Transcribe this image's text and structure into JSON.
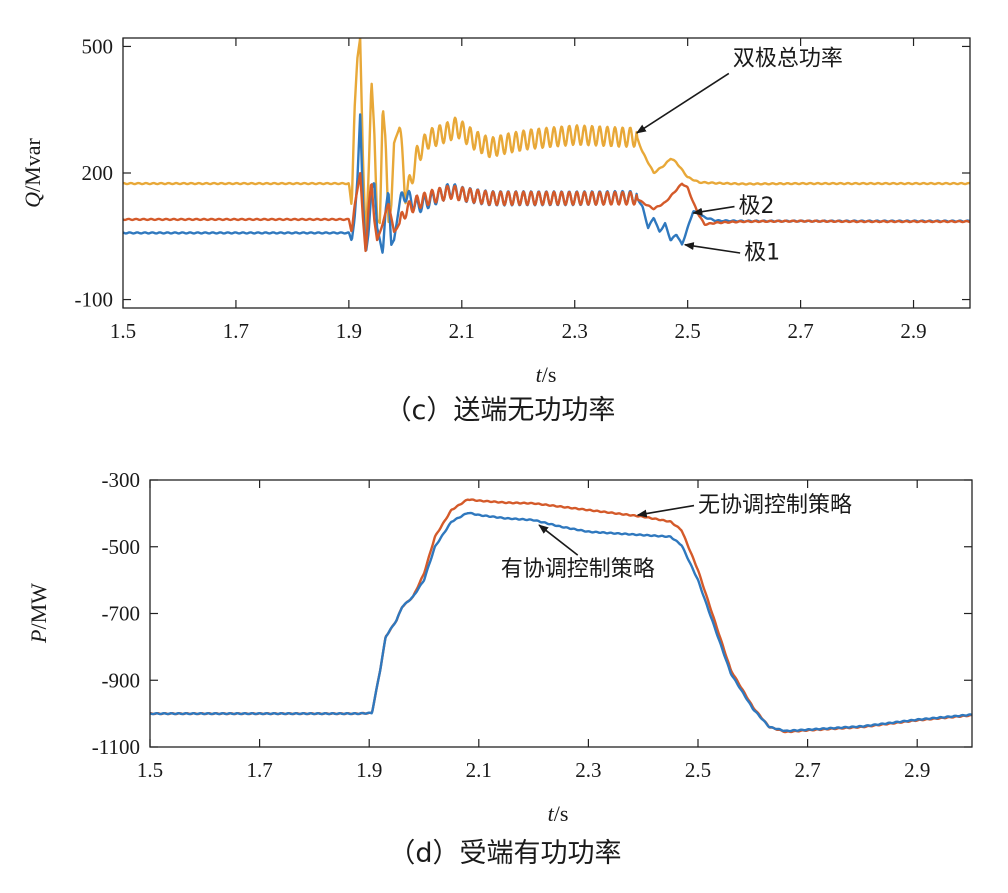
{
  "chart_data": [
    {
      "type": "line",
      "caption": "（c）送端无功功率",
      "ylabel_symbol": "Q",
      "ylabel_unit": "/Mvar",
      "xlabel_symbol": "t",
      "xlabel_unit": "/s",
      "xlim": [
        1.5,
        3.0
      ],
      "ylim": [
        -120,
        520
      ],
      "xticks": [
        1.5,
        1.7,
        1.9,
        2.1,
        2.3,
        2.5,
        2.7,
        2.9
      ],
      "xtick_labels": [
        "1.5",
        "1.7",
        "1.9",
        "2.1",
        "2.3",
        "2.5",
        "2.7",
        "2.9"
      ],
      "yticks": [
        500,
        200,
        -100
      ],
      "ytick_labels": [
        "500",
        "200",
        "-100"
      ],
      "grid": false,
      "series": [
        {
          "name": "双极总功率",
          "color": "#E8A838",
          "points": [
            [
              1.5,
              175
            ],
            [
              1.9,
              175
            ],
            [
              1.905,
              120
            ],
            [
              1.91,
              350
            ],
            [
              1.915,
              470
            ],
            [
              1.92,
              520
            ],
            [
              1.925,
              230
            ],
            [
              1.93,
              30
            ],
            [
              1.935,
              200
            ],
            [
              1.94,
              420
            ],
            [
              1.945,
              300
            ],
            [
              1.95,
              90
            ],
            [
              1.955,
              80
            ],
            [
              1.96,
              360
            ],
            [
              1.965,
              280
            ],
            [
              1.97,
              80
            ],
            [
              1.975,
              120
            ],
            [
              1.98,
              270
            ],
            [
              1.99,
              310
            ],
            [
              2.0,
              150
            ],
            [
              2.01,
              180
            ],
            [
              2.02,
              240
            ],
            [
              2.04,
              280
            ],
            [
              2.06,
              290
            ],
            [
              2.08,
              300
            ],
            [
              2.09,
              310
            ],
            [
              2.1,
              300
            ],
            [
              2.12,
              280
            ],
            [
              2.15,
              260
            ],
            [
              2.18,
              270
            ],
            [
              2.22,
              280
            ],
            [
              2.26,
              285
            ],
            [
              2.3,
              290
            ],
            [
              2.34,
              288
            ],
            [
              2.38,
              285
            ],
            [
              2.41,
              285
            ],
            [
              2.42,
              250
            ],
            [
              2.44,
              200
            ],
            [
              2.46,
              220
            ],
            [
              2.47,
              235
            ],
            [
              2.48,
              225
            ],
            [
              2.5,
              190
            ],
            [
              2.52,
              178
            ],
            [
              2.55,
              176
            ],
            [
              2.6,
              174
            ],
            [
              2.7,
              175
            ],
            [
              2.8,
              175
            ],
            [
              2.9,
              175
            ],
            [
              3.0,
              175
            ]
          ],
          "oscillation": [
            [
              1.99,
              2.41,
              22,
              0.0135
            ]
          ]
        },
        {
          "name": "极1",
          "color": "#2F78BE",
          "points": [
            [
              1.5,
              58
            ],
            [
              1.9,
              58
            ],
            [
              1.905,
              40
            ],
            [
              1.91,
              90
            ],
            [
              1.915,
              180
            ],
            [
              1.92,
              340
            ],
            [
              1.925,
              130
            ],
            [
              1.93,
              10
            ],
            [
              1.935,
              60
            ],
            [
              1.94,
              160
            ],
            [
              1.945,
              180
            ],
            [
              1.95,
              70
            ],
            [
              1.96,
              10
            ],
            [
              1.965,
              110
            ],
            [
              1.97,
              160
            ],
            [
              1.975,
              30
            ],
            [
              1.98,
              40
            ],
            [
              1.99,
              130
            ],
            [
              2.0,
              150
            ],
            [
              2.02,
              120
            ],
            [
              2.05,
              140
            ],
            [
              2.08,
              160
            ],
            [
              2.1,
              150
            ],
            [
              2.15,
              140
            ],
            [
              2.2,
              140
            ],
            [
              2.3,
              140
            ],
            [
              2.41,
              142
            ],
            [
              2.42,
              120
            ],
            [
              2.43,
              70
            ],
            [
              2.44,
              95
            ],
            [
              2.45,
              60
            ],
            [
              2.46,
              80
            ],
            [
              2.47,
              40
            ],
            [
              2.48,
              55
            ],
            [
              2.49,
              30
            ],
            [
              2.5,
              70
            ],
            [
              2.51,
              110
            ],
            [
              2.53,
              95
            ],
            [
              2.55,
              87
            ],
            [
              2.6,
              86
            ],
            [
              2.7,
              86
            ],
            [
              2.8,
              86
            ],
            [
              2.9,
              86
            ],
            [
              3.0,
              86
            ]
          ],
          "oscillation": [
            [
              1.99,
              2.41,
              16,
              0.0135
            ]
          ]
        },
        {
          "name": "极2",
          "color": "#D45A2A",
          "points": [
            [
              1.5,
              90
            ],
            [
              1.9,
              90
            ],
            [
              1.905,
              60
            ],
            [
              1.91,
              120
            ],
            [
              1.92,
              200
            ],
            [
              1.925,
              90
            ],
            [
              1.93,
              10
            ],
            [
              1.935,
              120
            ],
            [
              1.94,
              180
            ],
            [
              1.945,
              90
            ],
            [
              1.95,
              40
            ],
            [
              1.96,
              80
            ],
            [
              1.97,
              130
            ],
            [
              1.98,
              60
            ],
            [
              1.99,
              80
            ],
            [
              2.0,
              110
            ],
            [
              2.02,
              130
            ],
            [
              2.05,
              145
            ],
            [
              2.08,
              155
            ],
            [
              2.1,
              150
            ],
            [
              2.15,
              140
            ],
            [
              2.2,
              140
            ],
            [
              2.3,
              140
            ],
            [
              2.41,
              140
            ],
            [
              2.42,
              130
            ],
            [
              2.44,
              115
            ],
            [
              2.46,
              130
            ],
            [
              2.48,
              160
            ],
            [
              2.49,
              175
            ],
            [
              2.5,
              165
            ],
            [
              2.51,
              130
            ],
            [
              2.52,
              100
            ],
            [
              2.53,
              78
            ],
            [
              2.55,
              82
            ],
            [
              2.6,
              85
            ],
            [
              2.7,
              86
            ],
            [
              2.8,
              85
            ],
            [
              2.9,
              85
            ],
            [
              3.0,
              85
            ]
          ],
          "oscillation": [
            [
              1.99,
              2.41,
              16,
              0.0135
            ]
          ]
        }
      ],
      "annotations": [
        {
          "text": "双极总功率",
          "x": 2.58,
          "y": 455,
          "arrow_to": [
            2.41,
            295
          ]
        },
        {
          "text": "极2",
          "x": 2.59,
          "y": 105,
          "arrow_to": [
            2.51,
            105
          ]
        },
        {
          "text": "极1",
          "x": 2.6,
          "y": -5,
          "arrow_to": [
            2.495,
            30
          ]
        }
      ]
    },
    {
      "type": "line",
      "caption": "（d）受端有功功率",
      "ylabel_symbol": "P",
      "ylabel_unit": "/MW",
      "xlabel_symbol": "t",
      "xlabel_unit": "/s",
      "xlim": [
        1.5,
        3.0
      ],
      "ylim": [
        -1100,
        -300
      ],
      "xticks": [
        1.5,
        1.7,
        1.9,
        2.1,
        2.3,
        2.5,
        2.7,
        2.9
      ],
      "xtick_labels": [
        "1.5",
        "1.7",
        "1.9",
        "2.1",
        "2.3",
        "2.5",
        "2.7",
        "2.9"
      ],
      "yticks": [
        -300,
        -500,
        -700,
        -900,
        -1100
      ],
      "ytick_labels": [
        "-300",
        "-500",
        "-700",
        "-900",
        "-1100"
      ],
      "grid": false,
      "series": [
        {
          "name": "无协调控制策略",
          "color": "#D45A2A",
          "points": [
            [
              1.5,
              -1000
            ],
            [
              1.88,
              -1000
            ],
            [
              1.905,
              -998
            ],
            [
              1.92,
              -870
            ],
            [
              1.93,
              -770
            ],
            [
              1.95,
              -720
            ],
            [
              1.96,
              -680
            ],
            [
              1.98,
              -650
            ],
            [
              2.0,
              -580
            ],
            [
              2.02,
              -470
            ],
            [
              2.05,
              -390
            ],
            [
              2.08,
              -358
            ],
            [
              2.1,
              -362
            ],
            [
              2.15,
              -368
            ],
            [
              2.2,
              -370
            ],
            [
              2.25,
              -380
            ],
            [
              2.3,
              -390
            ],
            [
              2.35,
              -400
            ],
            [
              2.4,
              -410
            ],
            [
              2.45,
              -425
            ],
            [
              2.47,
              -450
            ],
            [
              2.5,
              -570
            ],
            [
              2.53,
              -720
            ],
            [
              2.56,
              -870
            ],
            [
              2.6,
              -980
            ],
            [
              2.63,
              -1040
            ],
            [
              2.66,
              -1055
            ],
            [
              2.7,
              -1050
            ],
            [
              2.8,
              -1040
            ],
            [
              2.9,
              -1020
            ],
            [
              3.0,
              -1005
            ]
          ]
        },
        {
          "name": "有协调控制策略",
          "color": "#2F78BE",
          "points": [
            [
              1.5,
              -1000
            ],
            [
              1.88,
              -1000
            ],
            [
              1.905,
              -998
            ],
            [
              1.92,
              -870
            ],
            [
              1.93,
              -770
            ],
            [
              1.95,
              -720
            ],
            [
              1.96,
              -680
            ],
            [
              1.98,
              -650
            ],
            [
              2.0,
              -600
            ],
            [
              2.02,
              -500
            ],
            [
              2.05,
              -425
            ],
            [
              2.08,
              -398
            ],
            [
              2.1,
              -405
            ],
            [
              2.15,
              -415
            ],
            [
              2.2,
              -420
            ],
            [
              2.25,
              -440
            ],
            [
              2.3,
              -455
            ],
            [
              2.35,
              -460
            ],
            [
              2.4,
              -465
            ],
            [
              2.45,
              -470
            ],
            [
              2.47,
              -495
            ],
            [
              2.5,
              -600
            ],
            [
              2.53,
              -740
            ],
            [
              2.56,
              -880
            ],
            [
              2.6,
              -985
            ],
            [
              2.63,
              -1040
            ],
            [
              2.66,
              -1052
            ],
            [
              2.7,
              -1048
            ],
            [
              2.8,
              -1038
            ],
            [
              2.9,
              -1018
            ],
            [
              3.0,
              -1003
            ]
          ]
        }
      ],
      "annotations": [
        {
          "text": "无协调控制策略",
          "x": 2.5,
          "y": -396,
          "arrow_to": [
            2.39,
            -405
          ]
        },
        {
          "text": "有协调控制策略",
          "x": 2.14,
          "y": -588,
          "arrow_to": [
            2.21,
            -435
          ]
        }
      ]
    }
  ]
}
